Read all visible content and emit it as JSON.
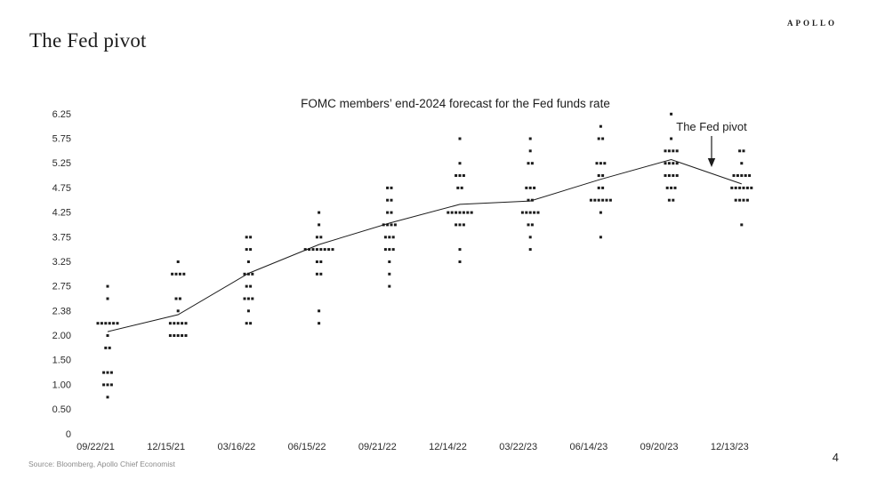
{
  "slide": {
    "title": "The Fed pivot",
    "logo": "APOLLO",
    "source": "Source: Bloomberg, Apollo Chief Economist",
    "page_number": "4"
  },
  "chart_data": {
    "type": "scatter",
    "title": "FOMC members’ end-2024 forecast for the Fed funds rate",
    "xlabel": "",
    "ylabel": "",
    "legend": "none",
    "grid": "off",
    "annotation": {
      "text": "The Fed pivot"
    },
    "y_ticks": [
      "0",
      "0.50",
      "1.00",
      "1.50",
      "2.00",
      "2.38",
      "2.75",
      "3.25",
      "3.75",
      "4.25",
      "4.75",
      "5.25",
      "5.75",
      "6.25"
    ],
    "y_axis_type": "non-linear tick ladder (level index 0-13, half levels fall between ticks)",
    "x_categories": [
      "09/22/21",
      "12/15/21",
      "03/16/22",
      "06/15/22",
      "09/21/22",
      "12/14/22",
      "03/22/23",
      "06/14/23",
      "09/20/23",
      "12/13/23"
    ],
    "dot_columns": [
      {
        "date": "09/22/21",
        "rows": [
          {
            "level": 6,
            "rate": 2.75,
            "count": 1
          },
          {
            "level": 5.5,
            "rate": 2.625,
            "count": 1
          },
          {
            "level": 4.5,
            "rate": 2.125,
            "count": 6
          },
          {
            "level": 4,
            "rate": 2.0,
            "count": 1
          },
          {
            "level": 3.5,
            "rate": 1.75,
            "count": 2
          },
          {
            "level": 2.5,
            "rate": 1.25,
            "count": 3
          },
          {
            "level": 2,
            "rate": 1.0,
            "count": 3
          },
          {
            "level": 1.5,
            "rate": 0.75,
            "count": 1
          }
        ]
      },
      {
        "date": "12/15/21",
        "rows": [
          {
            "level": 7,
            "rate": 3.25,
            "count": 1
          },
          {
            "level": 6.5,
            "rate": 3.0,
            "count": 4
          },
          {
            "level": 5.5,
            "rate": 2.625,
            "count": 2
          },
          {
            "level": 5,
            "rate": 2.375,
            "count": 1
          },
          {
            "level": 4.5,
            "rate": 2.125,
            "count": 5
          },
          {
            "level": 4,
            "rate": 2.0,
            "count": 5
          }
        ]
      },
      {
        "date": "03/16/22",
        "rows": [
          {
            "level": 8,
            "rate": 3.75,
            "count": 2
          },
          {
            "level": 7.5,
            "rate": 3.5,
            "count": 2
          },
          {
            "level": 7,
            "rate": 3.25,
            "count": 1
          },
          {
            "level": 6.5,
            "rate": 3.0,
            "count": 3
          },
          {
            "level": 6,
            "rate": 2.75,
            "count": 2
          },
          {
            "level": 5.5,
            "rate": 2.625,
            "count": 3
          },
          {
            "level": 5,
            "rate": 2.375,
            "count": 1
          },
          {
            "level": 4.5,
            "rate": 2.125,
            "count": 2
          }
        ]
      },
      {
        "date": "06/15/22",
        "rows": [
          {
            "level": 9,
            "rate": 4.25,
            "count": 1
          },
          {
            "level": 8.5,
            "rate": 4.0,
            "count": 1
          },
          {
            "level": 8,
            "rate": 3.75,
            "count": 2
          },
          {
            "level": 7.5,
            "rate": 3.5,
            "count": 8
          },
          {
            "level": 7,
            "rate": 3.25,
            "count": 2
          },
          {
            "level": 6.5,
            "rate": 3.0,
            "count": 2
          },
          {
            "level": 5,
            "rate": 2.375,
            "count": 1
          },
          {
            "level": 4.5,
            "rate": 2.125,
            "count": 1
          }
        ]
      },
      {
        "date": "09/21/22",
        "rows": [
          {
            "level": 10,
            "rate": 4.75,
            "count": 2
          },
          {
            "level": 9.5,
            "rate": 4.5,
            "count": 2
          },
          {
            "level": 9,
            "rate": 4.25,
            "count": 2
          },
          {
            "level": 8.5,
            "rate": 4.0,
            "count": 4
          },
          {
            "level": 8,
            "rate": 3.75,
            "count": 3
          },
          {
            "level": 7.5,
            "rate": 3.5,
            "count": 3
          },
          {
            "level": 7,
            "rate": 3.25,
            "count": 1
          },
          {
            "level": 6.5,
            "rate": 3.0,
            "count": 1
          },
          {
            "level": 6,
            "rate": 2.75,
            "count": 1
          }
        ]
      },
      {
        "date": "12/14/22",
        "rows": [
          {
            "level": 12,
            "rate": 5.75,
            "count": 1
          },
          {
            "level": 11,
            "rate": 5.25,
            "count": 1
          },
          {
            "level": 10.5,
            "rate": 5.0,
            "count": 3
          },
          {
            "level": 10,
            "rate": 4.75,
            "count": 2
          },
          {
            "level": 9,
            "rate": 4.25,
            "count": 7
          },
          {
            "level": 8.5,
            "rate": 4.0,
            "count": 3
          },
          {
            "level": 7.5,
            "rate": 3.5,
            "count": 1
          },
          {
            "level": 7,
            "rate": 3.25,
            "count": 1
          }
        ]
      },
      {
        "date": "03/22/23",
        "rows": [
          {
            "level": 12,
            "rate": 5.75,
            "count": 1
          },
          {
            "level": 11.5,
            "rate": 5.5,
            "count": 1
          },
          {
            "level": 11,
            "rate": 5.25,
            "count": 2
          },
          {
            "level": 10,
            "rate": 4.75,
            "count": 3
          },
          {
            "level": 9.5,
            "rate": 4.5,
            "count": 2
          },
          {
            "level": 9,
            "rate": 4.25,
            "count": 5
          },
          {
            "level": 8.5,
            "rate": 4.0,
            "count": 2
          },
          {
            "level": 8,
            "rate": 3.75,
            "count": 1
          },
          {
            "level": 7.5,
            "rate": 3.5,
            "count": 1
          }
        ]
      },
      {
        "date": "06/14/23",
        "rows": [
          {
            "level": 12.5,
            "rate": 6.0,
            "count": 1
          },
          {
            "level": 12,
            "rate": 5.75,
            "count": 2
          },
          {
            "level": 11,
            "rate": 5.25,
            "count": 3
          },
          {
            "level": 10.5,
            "rate": 5.0,
            "count": 2
          },
          {
            "level": 10,
            "rate": 4.75,
            "count": 2
          },
          {
            "level": 9.5,
            "rate": 4.5,
            "count": 6
          },
          {
            "level": 9,
            "rate": 4.25,
            "count": 1
          },
          {
            "level": 8,
            "rate": 3.75,
            "count": 1
          }
        ]
      },
      {
        "date": "09/20/23",
        "rows": [
          {
            "level": 13,
            "rate": 6.25,
            "count": 1
          },
          {
            "level": 12,
            "rate": 5.75,
            "count": 1
          },
          {
            "level": 11.5,
            "rate": 5.5,
            "count": 4
          },
          {
            "level": 11,
            "rate": 5.25,
            "count": 4
          },
          {
            "level": 10.5,
            "rate": 5.0,
            "count": 4
          },
          {
            "level": 10,
            "rate": 4.75,
            "count": 3
          },
          {
            "level": 9.5,
            "rate": 4.5,
            "count": 2
          }
        ]
      },
      {
        "date": "12/13/23",
        "rows": [
          {
            "level": 11.5,
            "rate": 5.5,
            "count": 2
          },
          {
            "level": 11,
            "rate": 5.25,
            "count": 1
          },
          {
            "level": 10.5,
            "rate": 5.0,
            "count": 5
          },
          {
            "level": 10,
            "rate": 4.75,
            "count": 6
          },
          {
            "level": 9.5,
            "rate": 4.5,
            "count": 4
          },
          {
            "level": 8.5,
            "rate": 4.0,
            "count": 1
          }
        ]
      }
    ],
    "median_line_levels": [
      4.16,
      4.85,
      6.53,
      7.7,
      8.57,
      9.33,
      9.47,
      10.35,
      11.15,
      10.16
    ],
    "colors": {
      "dot": "#1c1c1c",
      "line": "#1c1c1c",
      "text": "#1c1c1c",
      "source_text": "#8c8c8c"
    }
  }
}
